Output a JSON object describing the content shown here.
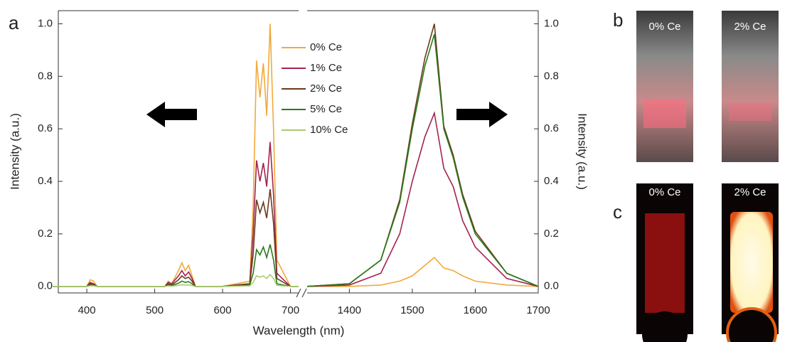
{
  "panel_labels": [
    "a",
    "b",
    "c"
  ],
  "photo_labels": [
    "0% Ce",
    "2% Ce",
    "0% Ce",
    "2% Ce"
  ],
  "chart_data": [
    {
      "type": "line",
      "xlabel": "Wavelength (nm)",
      "ylabel": "Intensity (a.u.)",
      "xlim": [
        358,
        712
      ],
      "xticks": [
        400,
        500,
        600,
        700
      ],
      "ylim": [
        -0.025,
        1.05
      ],
      "yticks": [
        {
          "value": 0,
          "label": "0.0"
        },
        0.2,
        0.4,
        0.6,
        0.8,
        {
          "value": 1,
          "label": "1.0"
        }
      ],
      "x": [
        350,
        400,
        405,
        410,
        415,
        500,
        515,
        520,
        525,
        535,
        540,
        545,
        550,
        555,
        560,
        600,
        640,
        645,
        650,
        655,
        660,
        665,
        670,
        675,
        680,
        700,
        712
      ],
      "series": [
        {
          "name": "0% Ce",
          "color": "#f2a93b",
          "values": [
            0,
            0,
            0.025,
            0.02,
            0,
            0,
            0,
            0.02,
            0.01,
            0.06,
            0.09,
            0.06,
            0.08,
            0.04,
            0,
            0,
            0.02,
            0.3,
            0.86,
            0.72,
            0.85,
            0.65,
            1.0,
            0.6,
            0.1,
            0,
            0
          ]
        },
        {
          "name": "1% Ce",
          "color": "#a3234f",
          "values": [
            0,
            0,
            0.015,
            0.01,
            0,
            0,
            0,
            0.015,
            0.01,
            0.04,
            0.06,
            0.04,
            0.055,
            0.03,
            0,
            0,
            0.01,
            0.2,
            0.48,
            0.4,
            0.47,
            0.38,
            0.55,
            0.35,
            0.05,
            0,
            0
          ]
        },
        {
          "name": "2% Ce",
          "color": "#6b3a1f",
          "values": [
            0,
            0,
            0.01,
            0.008,
            0,
            0,
            0,
            0.01,
            0.005,
            0.025,
            0.04,
            0.03,
            0.035,
            0.02,
            0,
            0,
            0.01,
            0.12,
            0.33,
            0.28,
            0.32,
            0.26,
            0.37,
            0.24,
            0.03,
            0,
            0
          ]
        },
        {
          "name": "5% Ce",
          "color": "#2a7a1a",
          "values": [
            0,
            0,
            0.005,
            0.004,
            0,
            0,
            0,
            0.005,
            0.003,
            0.012,
            0.02,
            0.015,
            0.018,
            0.01,
            0,
            0,
            0.005,
            0.05,
            0.14,
            0.12,
            0.15,
            0.11,
            0.16,
            0.1,
            0.01,
            0,
            0
          ]
        },
        {
          "name": "10% Ce",
          "color": "#a8cc70",
          "values": [
            0,
            0,
            0.002,
            0.002,
            0,
            0,
            0,
            0.002,
            0.001,
            0.004,
            0.006,
            0.005,
            0.006,
            0.003,
            0,
            0,
            0.002,
            0.015,
            0.04,
            0.035,
            0.04,
            0.03,
            0.045,
            0.03,
            0.004,
            0,
            0
          ]
        }
      ]
    },
    {
      "type": "line",
      "y2label": "Intensity (a.u.)",
      "xlim": [
        1333,
        1700
      ],
      "xticks": [
        1400,
        1500,
        1600,
        1700
      ],
      "y2lim": [
        -0.025,
        1.05
      ],
      "y2ticks": [
        {
          "value": 0,
          "label": "0.0"
        },
        0.2,
        0.4,
        0.6,
        0.8,
        {
          "value": 1,
          "label": "1.0"
        }
      ],
      "x": [
        1333,
        1400,
        1450,
        1480,
        1500,
        1520,
        1535,
        1550,
        1565,
        1580,
        1600,
        1650,
        1700
      ],
      "series": [
        {
          "axis": "y2",
          "color": "#f2a93b",
          "values": [
            0,
            0,
            0.005,
            0.02,
            0.04,
            0.08,
            0.11,
            0.07,
            0.06,
            0.04,
            0.02,
            0.005,
            0
          ]
        },
        {
          "axis": "y2",
          "color": "#a3234f",
          "values": [
            0,
            0.005,
            0.05,
            0.2,
            0.4,
            0.57,
            0.66,
            0.45,
            0.38,
            0.25,
            0.15,
            0.03,
            0
          ]
        },
        {
          "axis": "y2",
          "color": "#6b3a1f",
          "values": [
            0,
            0.01,
            0.1,
            0.33,
            0.62,
            0.87,
            1.0,
            0.61,
            0.5,
            0.35,
            0.21,
            0.05,
            0
          ]
        },
        {
          "axis": "y2",
          "color": "#2a7a1a",
          "values": [
            0,
            0.01,
            0.1,
            0.32,
            0.6,
            0.84,
            0.96,
            0.6,
            0.49,
            0.34,
            0.2,
            0.05,
            0
          ]
        }
      ]
    }
  ]
}
